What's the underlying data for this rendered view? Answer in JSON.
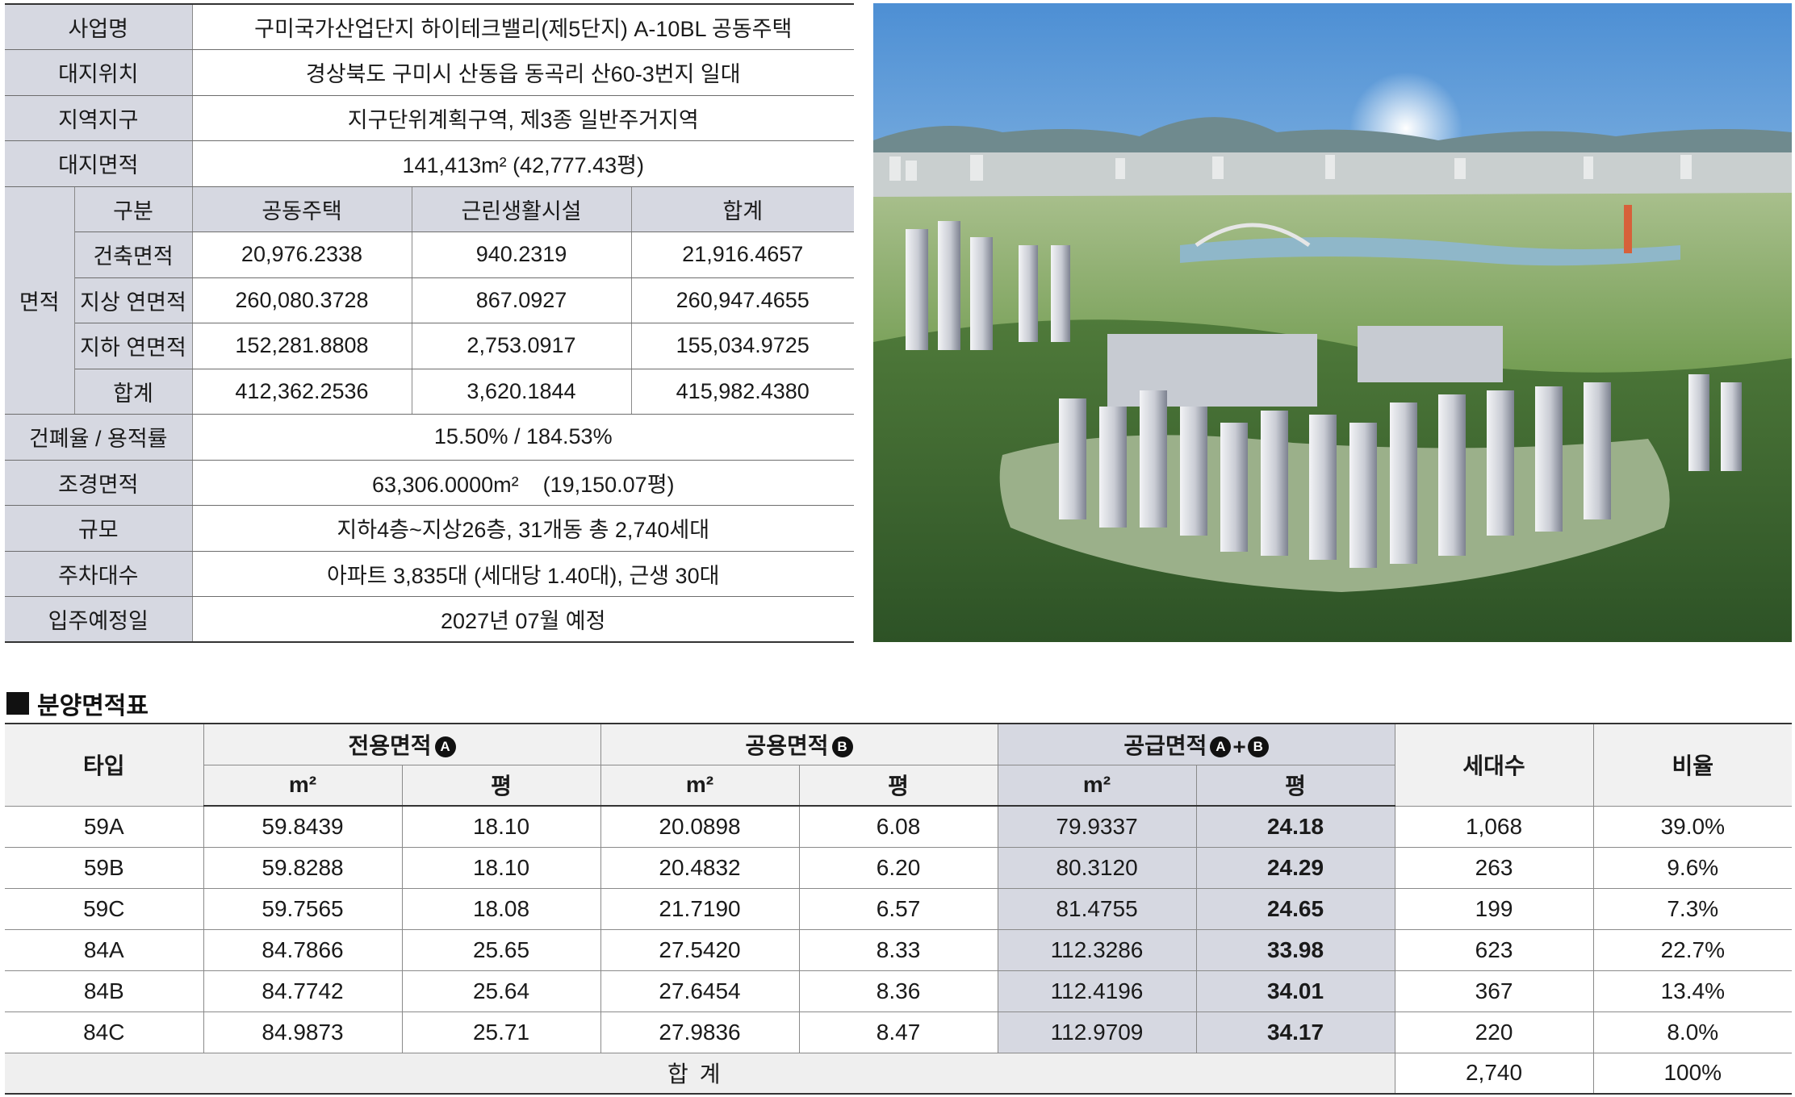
{
  "info": {
    "project_label": "사업명",
    "project_value": "구미국가산업단지 하이테크밸리(제5단지) A-10BL 공동주택",
    "site_label": "대지위치",
    "site_value": "경상북도 구미시 산동읍 동곡리 산60-3번지 일대",
    "zone_label": "지역지구",
    "zone_value": "지구단위계획구역, 제3종 일반주거지역",
    "land_area_label": "대지면적",
    "land_area_value": "141,413m² (42,777.43평)",
    "area_group_label": "면적",
    "area_headers": [
      "구분",
      "공동주택",
      "근린생활시설",
      "합계"
    ],
    "area_rows": [
      {
        "label": "건축면적",
        "c1": "20,976.2338",
        "c2": "940.2319",
        "c3": "21,916.4657"
      },
      {
        "label": "지상 연면적",
        "c1": "260,080.3728",
        "c2": "867.0927",
        "c3": "260,947.4655"
      },
      {
        "label": "지하 연면적",
        "c1": "152,281.8808",
        "c2": "2,753.0917",
        "c3": "155,034.9725"
      },
      {
        "label": "합계",
        "c1": "412,362.2536",
        "c2": "3,620.1844",
        "c3": "415,982.4380"
      }
    ],
    "ratio_label": "건폐율 / 용적률",
    "ratio_value": "15.50% / 184.53%",
    "landscape_label": "조경면적",
    "landscape_value": "63,306.0000m²    (19,150.07평)",
    "scale_label": "규모",
    "scale_value": "지하4층~지상26층, 31개동 총 2,740세대",
    "parking_label": "주차대수",
    "parking_value": "아파트 3,835대 (세대당 1.40대), 근생 30대",
    "movein_label": "입주예정일",
    "movein_value": "2027년 07월 예정"
  },
  "section_title": "분양면적표",
  "area_table": {
    "type_header": "타입",
    "exclusive_header": "전용면적",
    "common_header": "공용면적",
    "supply_header": "공급면적",
    "mark_a": "A",
    "mark_b": "B",
    "plus": "+",
    "households_header": "세대수",
    "ratio_header": "비율",
    "unit_m2": "m²",
    "unit_pyeong": "평",
    "rows": [
      {
        "type": "59A",
        "ex_m2": "59.8439",
        "ex_py": "18.10",
        "co_m2": "20.0898",
        "co_py": "6.08",
        "su_m2": "79.9337",
        "su_py": "24.18",
        "households": "1,068",
        "ratio": "39.0%"
      },
      {
        "type": "59B",
        "ex_m2": "59.8288",
        "ex_py": "18.10",
        "co_m2": "20.4832",
        "co_py": "6.20",
        "su_m2": "80.3120",
        "su_py": "24.29",
        "households": "263",
        "ratio": "9.6%"
      },
      {
        "type": "59C",
        "ex_m2": "59.7565",
        "ex_py": "18.08",
        "co_m2": "21.7190",
        "co_py": "6.57",
        "su_m2": "81.4755",
        "su_py": "24.65",
        "households": "199",
        "ratio": "7.3%"
      },
      {
        "type": "84A",
        "ex_m2": "84.7866",
        "ex_py": "25.65",
        "co_m2": "27.5420",
        "co_py": "8.33",
        "su_m2": "112.3286",
        "su_py": "33.98",
        "households": "623",
        "ratio": "22.7%"
      },
      {
        "type": "84B",
        "ex_m2": "84.7742",
        "ex_py": "25.64",
        "co_m2": "27.6454",
        "co_py": "8.36",
        "su_m2": "112.4196",
        "su_py": "34.01",
        "households": "367",
        "ratio": "13.4%"
      },
      {
        "type": "84C",
        "ex_m2": "84.9873",
        "ex_py": "25.71",
        "co_m2": "27.9836",
        "co_py": "8.47",
        "su_m2": "112.9709",
        "su_py": "34.17",
        "households": "220",
        "ratio": "8.0%"
      }
    ],
    "total_label": "합계",
    "total_households": "2,740",
    "total_ratio": "100%"
  }
}
